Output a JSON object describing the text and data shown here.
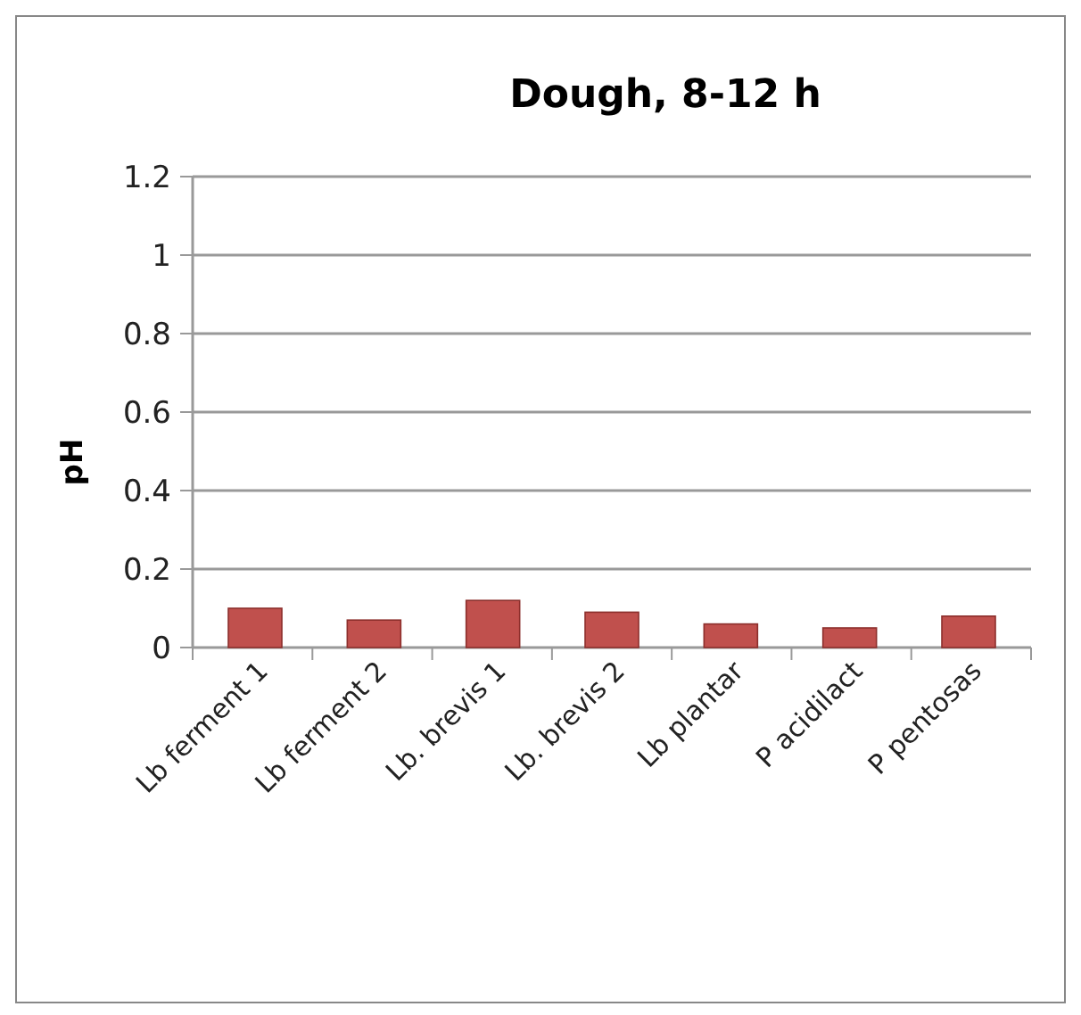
{
  "chart_data": {
    "type": "bar",
    "title": "Dough, 8-12 h",
    "ylabel": "pH",
    "categories": [
      "Lb ferment 1",
      "Lb ferment 2",
      "Lb. brevis 1",
      "Lb. brevis 2",
      "Lb plantar",
      "P acidilact",
      "P pentosas"
    ],
    "values": [
      0.1,
      0.07,
      0.12,
      0.09,
      0.06,
      0.05,
      0.08
    ],
    "color": "#c0504d",
    "ylim": [
      0,
      1.2
    ],
    "yticks": [
      0,
      0.2,
      0.4,
      0.6,
      0.8,
      1,
      1.2
    ],
    "grid": "y"
  }
}
